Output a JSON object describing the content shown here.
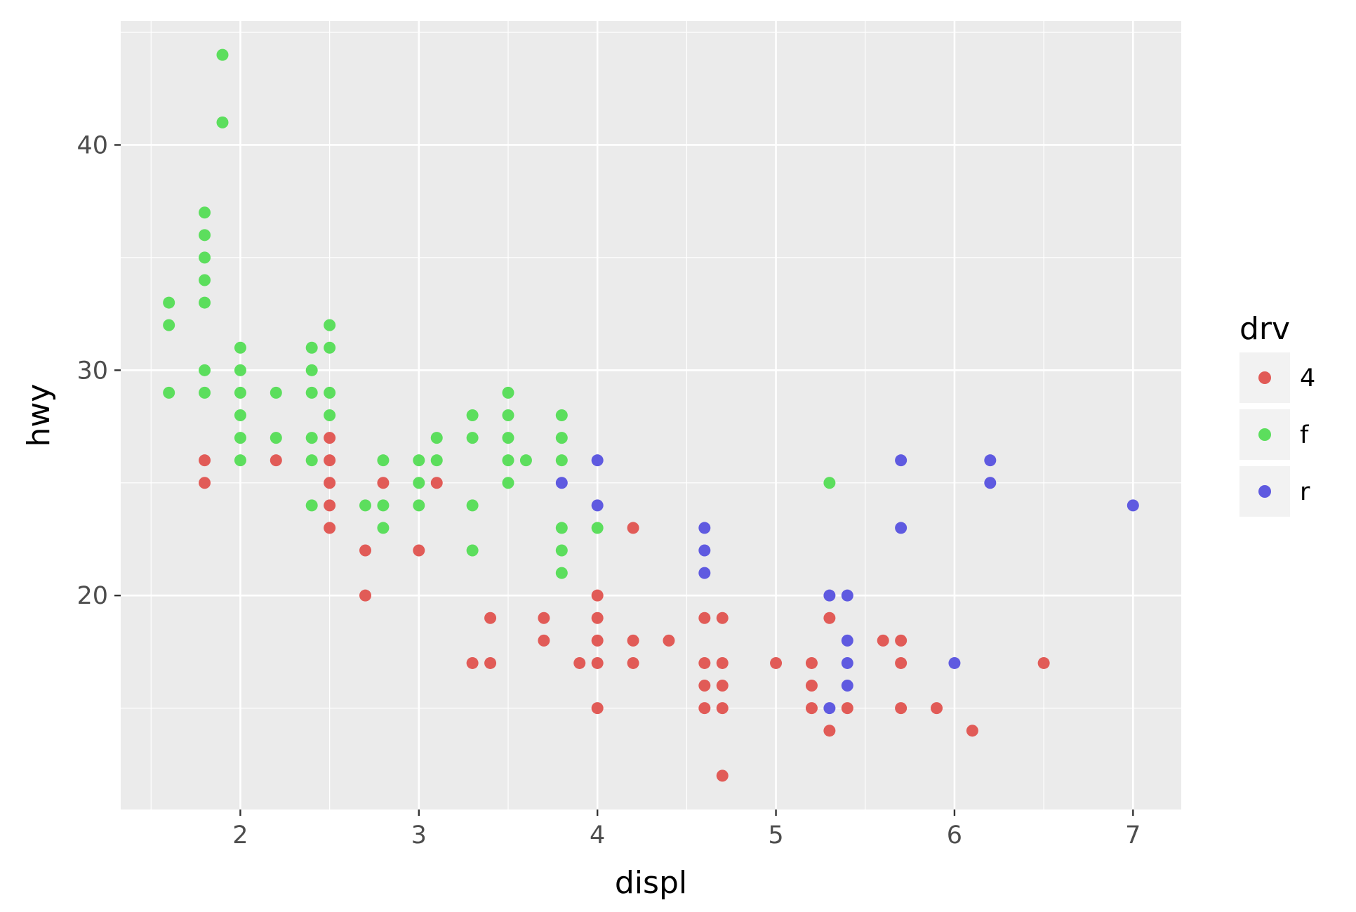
{
  "chart_data": {
    "type": "scatter",
    "xlabel": "displ",
    "ylabel": "hwy",
    "xlim": [
      1.33,
      7.27
    ],
    "ylim": [
      10.5,
      45.5
    ],
    "x_ticks": [
      2,
      3,
      4,
      5,
      6,
      7
    ],
    "y_ticks": [
      20,
      30,
      40
    ],
    "grid": true,
    "legend": {
      "title": "drv",
      "position": "right",
      "entries": [
        "4",
        "f",
        "r"
      ]
    },
    "colors": {
      "4": "#e15b57",
      "f": "#5cde5d",
      "r": "#5f5ae0",
      "panel": "#ebebeb",
      "grid": "#ffffff"
    },
    "series": [
      {
        "name": "4",
        "points": [
          [
            1.8,
            26
          ],
          [
            1.8,
            25
          ],
          [
            2.2,
            26
          ],
          [
            2.5,
            27
          ],
          [
            2.5,
            26
          ],
          [
            2.5,
            25
          ],
          [
            2.5,
            24
          ],
          [
            2.5,
            23
          ],
          [
            2.7,
            22
          ],
          [
            2.7,
            20
          ],
          [
            2.8,
            25
          ],
          [
            3.0,
            22
          ],
          [
            3.1,
            25
          ],
          [
            3.3,
            17
          ],
          [
            3.4,
            19
          ],
          [
            3.4,
            17
          ],
          [
            3.7,
            19
          ],
          [
            3.7,
            18
          ],
          [
            3.9,
            17
          ],
          [
            4.0,
            20
          ],
          [
            4.0,
            19
          ],
          [
            4.0,
            18
          ],
          [
            4.0,
            17
          ],
          [
            4.0,
            15
          ],
          [
            4.2,
            23
          ],
          [
            4.2,
            18
          ],
          [
            4.2,
            17
          ],
          [
            4.4,
            18
          ],
          [
            4.6,
            19
          ],
          [
            4.6,
            17
          ],
          [
            4.6,
            16
          ],
          [
            4.6,
            15
          ],
          [
            4.7,
            19
          ],
          [
            4.7,
            17
          ],
          [
            4.7,
            16
          ],
          [
            4.7,
            15
          ],
          [
            4.7,
            12
          ],
          [
            5.0,
            17
          ],
          [
            5.2,
            17
          ],
          [
            5.2,
            16
          ],
          [
            5.2,
            15
          ],
          [
            5.3,
            19
          ],
          [
            5.3,
            14
          ],
          [
            5.4,
            15
          ],
          [
            5.6,
            18
          ],
          [
            5.7,
            18
          ],
          [
            5.7,
            17
          ],
          [
            5.7,
            15
          ],
          [
            5.9,
            15
          ],
          [
            6.1,
            14
          ],
          [
            6.5,
            17
          ]
        ]
      },
      {
        "name": "f",
        "points": [
          [
            1.6,
            33
          ],
          [
            1.6,
            32
          ],
          [
            1.6,
            29
          ],
          [
            1.8,
            37
          ],
          [
            1.8,
            36
          ],
          [
            1.8,
            35
          ],
          [
            1.8,
            34
          ],
          [
            1.8,
            33
          ],
          [
            1.8,
            30
          ],
          [
            1.8,
            29
          ],
          [
            1.9,
            44
          ],
          [
            1.9,
            41
          ],
          [
            2.0,
            31
          ],
          [
            2.0,
            30
          ],
          [
            2.0,
            29
          ],
          [
            2.0,
            28
          ],
          [
            2.0,
            27
          ],
          [
            2.0,
            26
          ],
          [
            2.2,
            29
          ],
          [
            2.2,
            27
          ],
          [
            2.4,
            31
          ],
          [
            2.4,
            30
          ],
          [
            2.4,
            29
          ],
          [
            2.4,
            27
          ],
          [
            2.4,
            26
          ],
          [
            2.4,
            24
          ],
          [
            2.5,
            32
          ],
          [
            2.5,
            31
          ],
          [
            2.5,
            29
          ],
          [
            2.5,
            28
          ],
          [
            2.7,
            24
          ],
          [
            2.8,
            26
          ],
          [
            2.8,
            24
          ],
          [
            2.8,
            23
          ],
          [
            3.0,
            26
          ],
          [
            3.0,
            25
          ],
          [
            3.0,
            24
          ],
          [
            3.1,
            27
          ],
          [
            3.1,
            26
          ],
          [
            3.3,
            28
          ],
          [
            3.3,
            27
          ],
          [
            3.3,
            24
          ],
          [
            3.3,
            22
          ],
          [
            3.5,
            29
          ],
          [
            3.5,
            28
          ],
          [
            3.5,
            27
          ],
          [
            3.5,
            26
          ],
          [
            3.5,
            25
          ],
          [
            3.6,
            26
          ],
          [
            3.8,
            28
          ],
          [
            3.8,
            27
          ],
          [
            3.8,
            26
          ],
          [
            3.8,
            23
          ],
          [
            3.8,
            22
          ],
          [
            3.8,
            21
          ],
          [
            4.0,
            23
          ],
          [
            5.3,
            25
          ]
        ]
      },
      {
        "name": "r",
        "points": [
          [
            3.8,
            25
          ],
          [
            4.0,
            26
          ],
          [
            4.0,
            24
          ],
          [
            4.6,
            23
          ],
          [
            4.6,
            22
          ],
          [
            4.6,
            21
          ],
          [
            5.3,
            20
          ],
          [
            5.3,
            15
          ],
          [
            5.4,
            20
          ],
          [
            5.4,
            18
          ],
          [
            5.4,
            17
          ],
          [
            5.4,
            16
          ],
          [
            5.7,
            26
          ],
          [
            5.7,
            23
          ],
          [
            6.0,
            17
          ],
          [
            6.2,
            26
          ],
          [
            6.2,
            25
          ],
          [
            7.0,
            24
          ]
        ]
      }
    ]
  }
}
